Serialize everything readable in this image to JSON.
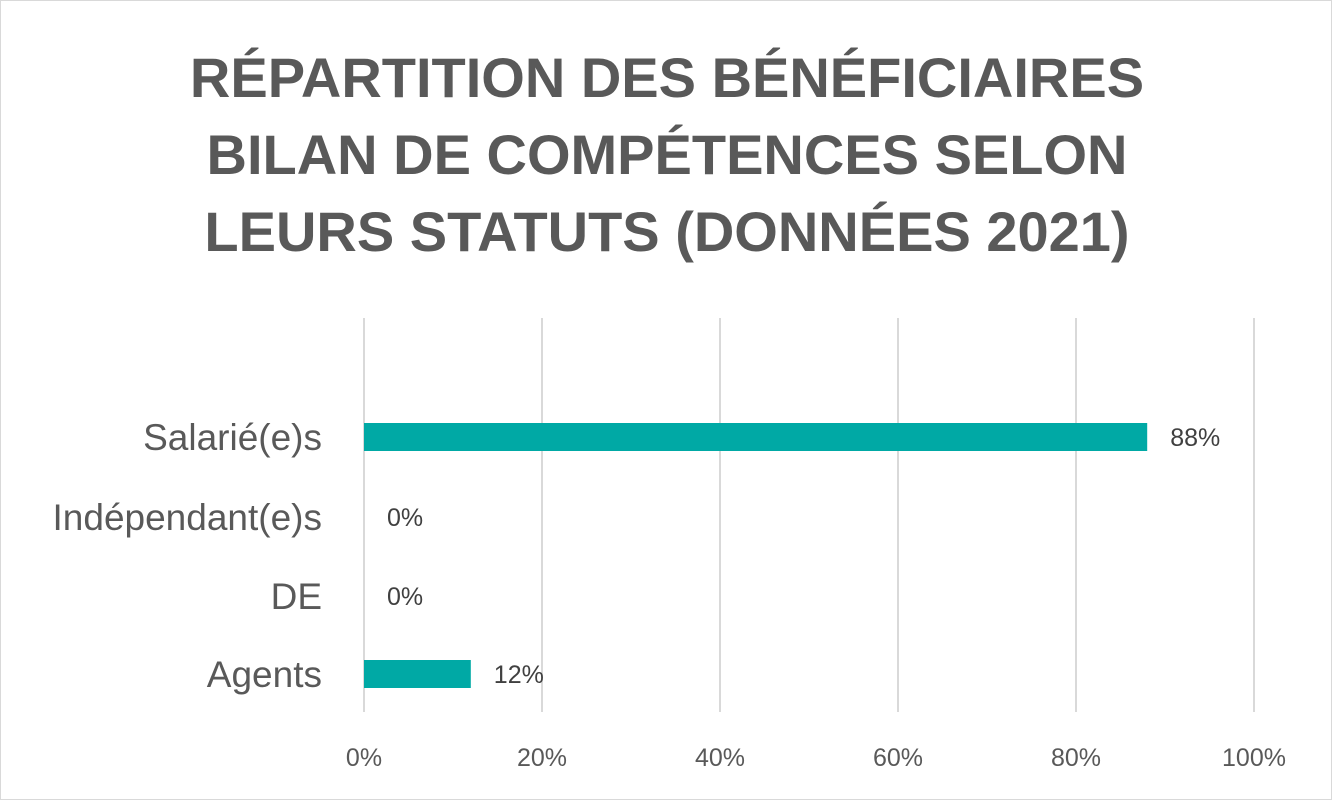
{
  "chart_data": {
    "type": "bar",
    "orientation": "horizontal",
    "title_lines": [
      "RÉPARTITION DES BÉNÉFICIAIRES",
      "BILAN DE COMPÉTENCES  SELON",
      "LEURS STATUTS (DONNÉES 2021)"
    ],
    "categories": [
      "Salarié(e)s",
      "Indépendant(e)s",
      "DE",
      "Agents"
    ],
    "values": [
      88,
      0,
      0,
      12
    ],
    "data_labels": [
      "88%",
      "0%",
      "0%",
      "12%"
    ],
    "x_ticks": [
      0,
      20,
      40,
      60,
      80,
      100
    ],
    "x_tick_labels": [
      "0%",
      "20%",
      "40%",
      "60%",
      "80%",
      "100%"
    ],
    "xlim": [
      0,
      100
    ],
    "xlabel": "",
    "ylabel": "",
    "grid": "vertical",
    "legend": "none",
    "bar_color": "#00a9a5"
  }
}
